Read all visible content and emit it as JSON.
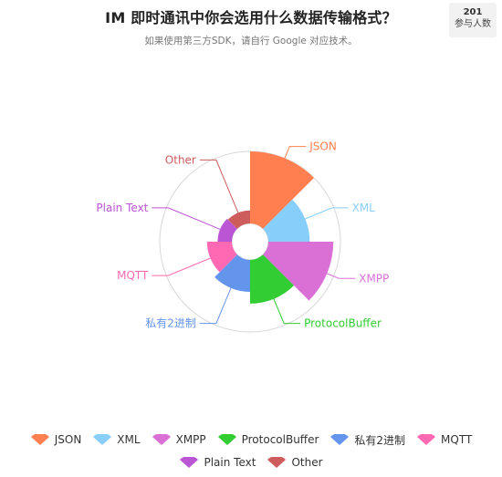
{
  "header": {
    "title": "IM 即时通讯中你会选用什么数据传输格式？",
    "subtitle": "如果使用第三方SDK，请自行 Google 对应技术。",
    "participants_count": "201",
    "participants_label": "参与人数"
  },
  "chart_data": {
    "type": "rose",
    "title": "IM 即时通讯中你会选用什么数据传输格式？",
    "subtitle": "如果使用第三方SDK，请自行 Google 对应技术。",
    "legend_position": "bottom",
    "categories": [
      "JSON",
      "XML",
      "XMPP",
      "ProtocolBuffer",
      "私有2进制",
      "MQTT",
      "Plain Text",
      "Other"
    ],
    "values": [
      61,
      35,
      55,
      37,
      27,
      21,
      12,
      11
    ],
    "colors": [
      "#ff7f50",
      "#87cefa",
      "#da70d6",
      "#32cd32",
      "#6495ed",
      "#ff69b4",
      "#ba55d3",
      "#cd5c5c"
    ]
  },
  "legend": {
    "rows": [
      [
        "JSON",
        "XML",
        "XMPP",
        "ProtocolBuffer",
        "私有2进制",
        "MQTT"
      ],
      [
        "Plain Text",
        "Other"
      ]
    ]
  }
}
